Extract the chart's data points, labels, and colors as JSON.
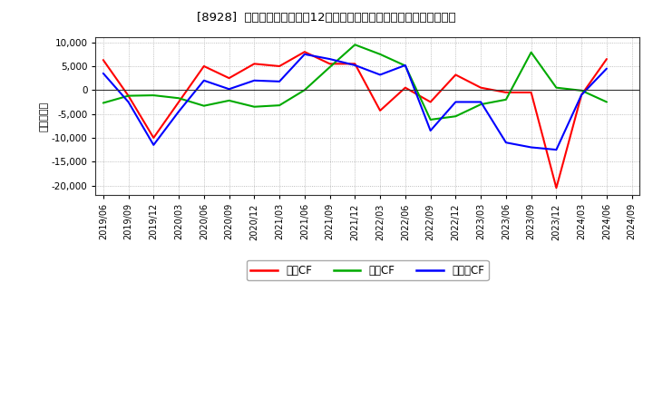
{
  "title": "[8928]  キャッシュフローの12か月移動合計の対前年同期増減額の推移",
  "ylabel": "（百万円）",
  "ylim": [
    -22000,
    11000
  ],
  "yticks": [
    -20000,
    -15000,
    -10000,
    -5000,
    0,
    5000,
    10000
  ],
  "x_labels": [
    "2019/06",
    "2019/09",
    "2019/12",
    "2020/03",
    "2020/06",
    "2020/09",
    "2020/12",
    "2021/03",
    "2021/06",
    "2021/09",
    "2021/12",
    "2022/03",
    "2022/06",
    "2022/09",
    "2022/12",
    "2023/03",
    "2023/06",
    "2023/09",
    "2023/12",
    "2024/03",
    "2024/06",
    "2024/09"
  ],
  "eigyo_cf": [
    6300,
    -1200,
    -10000,
    -2500,
    5000,
    2500,
    5500,
    5000,
    8000,
    5500,
    5500,
    -4300,
    500,
    -2500,
    3200,
    500,
    -500,
    -500,
    -20500,
    -1000,
    6500,
    null
  ],
  "toshi_cf": [
    -2700,
    -1200,
    -1100,
    -1700,
    -3300,
    -2200,
    -3500,
    -3200,
    0,
    4800,
    9500,
    7500,
    5100,
    -6200,
    -5500,
    -3000,
    -2000,
    7900,
    500,
    -100,
    -2500,
    null
  ],
  "free_cf": [
    3500,
    -2500,
    -11500,
    -4500,
    2000,
    200,
    2000,
    1800,
    7500,
    6500,
    5200,
    3200,
    5200,
    -8500,
    -2500,
    -2500,
    -11000,
    -12000,
    -12500,
    -1000,
    4500,
    null
  ],
  "eigyo_color": "#ff0000",
  "toshi_color": "#00aa00",
  "free_color": "#0000ff",
  "legend_eigyo": "営業CF",
  "legend_toshi": "投資CF",
  "legend_free": "フリーCF"
}
